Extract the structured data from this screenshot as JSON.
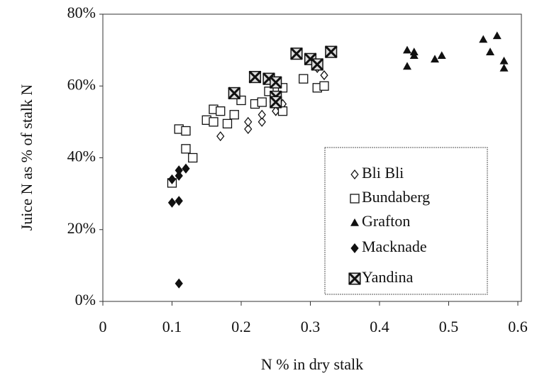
{
  "chart_data": {
    "type": "scatter",
    "xlabel": "N % in dry stalk",
    "ylabel": "Juice N as % of stalk N",
    "xlim": [
      0,
      0.6
    ],
    "xticks": [
      0,
      0.1,
      0.2,
      0.3,
      0.4,
      0.5,
      0.6
    ],
    "ylim": [
      0,
      80
    ],
    "yticks": [
      {
        "value": 0,
        "label": "0%"
      },
      {
        "value": 20,
        "label": "20%"
      },
      {
        "value": 40,
        "label": "40%"
      },
      {
        "value": 60,
        "label": "60%"
      },
      {
        "value": 80,
        "label": "80%"
      }
    ],
    "legend": "lower right",
    "series": [
      {
        "name": "Bli Bli",
        "color": "#111111",
        "marker": "diamond-open",
        "x": [
          0.17,
          0.21,
          0.21,
          0.23,
          0.23,
          0.25,
          0.26,
          0.32,
          0.31
        ],
        "values": [
          46,
          48,
          50,
          50,
          52,
          53,
          55,
          63,
          65
        ]
      },
      {
        "name": "Bundaberg",
        "color": "#111111",
        "marker": "square-open",
        "x": [
          0.1,
          0.11,
          0.12,
          0.12,
          0.13,
          0.15,
          0.16,
          0.16,
          0.17,
          0.18,
          0.19,
          0.2,
          0.22,
          0.23,
          0.24,
          0.25,
          0.26,
          0.26,
          0.29,
          0.31,
          0.32
        ],
        "values": [
          33,
          48,
          47.5,
          42.5,
          40,
          50.5,
          53.5,
          50,
          53,
          49.5,
          52,
          56,
          55,
          55.5,
          58.5,
          56,
          59.5,
          53,
          62,
          59.5,
          60
        ]
      },
      {
        "name": "Grafton",
        "color": "#111111",
        "marker": "triangle-filled",
        "x": [
          0.44,
          0.44,
          0.45,
          0.45,
          0.48,
          0.49,
          0.55,
          0.56,
          0.57,
          0.58,
          0.58
        ],
        "values": [
          70,
          65.5,
          69.5,
          68.5,
          67.5,
          68.5,
          73,
          69.5,
          74,
          67,
          65
        ]
      },
      {
        "name": "Macknade",
        "color": "#111111",
        "marker": "diamond-filled",
        "x": [
          0.1,
          0.11,
          0.1,
          0.11,
          0.12,
          0.11,
          0.11
        ],
        "values": [
          27.5,
          28,
          34,
          36.5,
          37,
          35,
          5
        ]
      },
      {
        "name": "Yandina",
        "color": "#111111",
        "marker": "square-x",
        "x": [
          0.19,
          0.22,
          0.24,
          0.25,
          0.25,
          0.25,
          0.28,
          0.3,
          0.31,
          0.33
        ],
        "values": [
          58,
          62.5,
          62,
          61,
          57,
          55.5,
          69,
          67.5,
          66,
          69.5
        ]
      }
    ]
  }
}
